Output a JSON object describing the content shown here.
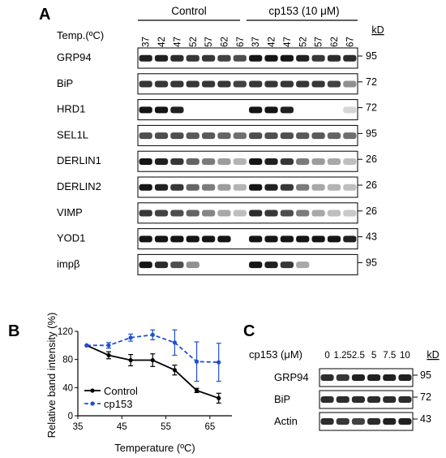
{
  "panelA": {
    "letter": "A",
    "groups": [
      "Control",
      "cp153 (10 μM)"
    ],
    "temp_label": "Temp.(ºC)",
    "temps": [
      "37",
      "42",
      "47",
      "52",
      "57",
      "62",
      "67",
      "37",
      "42",
      "47",
      "52",
      "57",
      "62",
      "67"
    ],
    "kd_header": "kD",
    "blots": [
      {
        "name": "GRP94",
        "marker": "95",
        "intensity": [
          0.9,
          0.9,
          0.85,
          0.8,
          0.8,
          0.75,
          0.7,
          0.95,
          0.95,
          0.95,
          0.9,
          0.8,
          0.85,
          0.85
        ]
      },
      {
        "name": "BiP",
        "marker": "72",
        "intensity": [
          0.8,
          0.8,
          0.8,
          0.8,
          0.8,
          0.8,
          0.75,
          0.8,
          0.8,
          0.8,
          0.8,
          0.8,
          0.75,
          0.4
        ]
      },
      {
        "name": "HRD1",
        "marker": "72",
        "intensity": [
          0.95,
          0.95,
          0.9,
          0,
          0,
          0,
          0,
          0.95,
          0.95,
          0.9,
          0,
          0,
          0,
          0.1
        ]
      },
      {
        "name": "SEL1L",
        "marker": "95",
        "intensity": [
          0.7,
          0.7,
          0.7,
          0.65,
          0.65,
          0.6,
          0.55,
          0.7,
          0.7,
          0.7,
          0.65,
          0.65,
          0.6,
          0.55
        ]
      },
      {
        "name": "DERLIN1",
        "marker": "26",
        "intensity": [
          0.95,
          0.9,
          0.8,
          0.6,
          0.5,
          0.35,
          0.25,
          0.95,
          0.9,
          0.8,
          0.5,
          0.35,
          0.3,
          0.2
        ]
      },
      {
        "name": "DERLIN2",
        "marker": "26",
        "intensity": [
          0.95,
          0.9,
          0.8,
          0.6,
          0.5,
          0.35,
          0.25,
          0.95,
          0.9,
          0.8,
          0.5,
          0.3,
          0.25,
          0.2
        ]
      },
      {
        "name": "VIMP",
        "marker": "26",
        "intensity": [
          0.8,
          0.75,
          0.7,
          0.6,
          0.45,
          0.3,
          0.2,
          0.85,
          0.8,
          0.7,
          0.5,
          0.3,
          0.2,
          0.15
        ]
      },
      {
        "name": "YOD1",
        "marker": "43",
        "intensity": [
          0.95,
          0.95,
          0.95,
          0.95,
          0.95,
          0.95,
          0,
          0.95,
          0.95,
          0.95,
          0.95,
          0.95,
          0.95,
          0.9
        ]
      },
      {
        "name": "impβ",
        "marker": "95",
        "intensity": [
          0.95,
          0.85,
          0.7,
          0.4,
          0,
          0,
          0,
          0.95,
          0.9,
          0.8,
          0.3,
          0,
          0,
          0
        ]
      }
    ]
  },
  "panelB": {
    "letter": "B",
    "chart_data": {
      "type": "line",
      "xlabel": "Temperature (ºC)",
      "ylabel": "Relative band intensity (%)",
      "xlim": [
        35,
        70
      ],
      "ylim": [
        0,
        120
      ],
      "xticks": [
        35,
        45,
        55,
        65
      ],
      "yticks": [
        0,
        40,
        80,
        120
      ],
      "x": [
        37,
        42,
        47,
        52,
        57,
        62,
        67
      ],
      "series": [
        {
          "name": "Control",
          "color": "#000000",
          "dash": false,
          "values": [
            100,
            86,
            79,
            79,
            65,
            36,
            25
          ],
          "errors": [
            0,
            5,
            8,
            9,
            7,
            3,
            7
          ]
        },
        {
          "name": "cp153",
          "color": "#1f4fd1",
          "dash": true,
          "values": [
            100,
            100,
            111,
            115,
            104,
            77,
            76
          ],
          "errors": [
            0,
            4,
            5,
            7,
            18,
            28,
            27
          ]
        }
      ],
      "legend": "bottom-left"
    }
  },
  "panelC": {
    "letter": "C",
    "dose_label": "cp153 (μM)",
    "doses": [
      "0",
      "1.25",
      "2.5",
      "5",
      "7.5",
      "10"
    ],
    "kd_header": "kD",
    "blots": [
      {
        "name": "GRP94",
        "marker": "95",
        "intensity": [
          0.85,
          0.8,
          0.9,
          0.9,
          0.9,
          0.9
        ]
      },
      {
        "name": "BiP",
        "marker": "72",
        "intensity": [
          0.85,
          0.85,
          0.85,
          0.85,
          0.85,
          0.85
        ]
      },
      {
        "name": "Actin",
        "marker": "43",
        "intensity": [
          0.85,
          0.8,
          0.75,
          0.85,
          0.9,
          0.9
        ]
      }
    ]
  }
}
